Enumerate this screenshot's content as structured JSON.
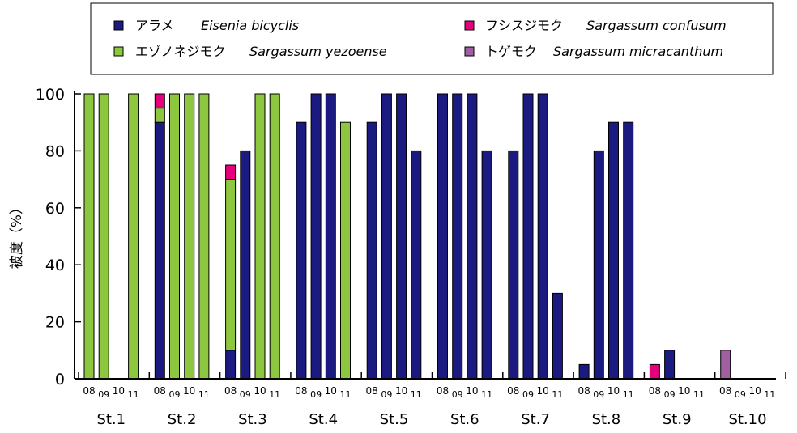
{
  "chart_data": {
    "type": "bar",
    "stacked": true,
    "ylabel": "被度（%）",
    "ylim": [
      0,
      100
    ],
    "yticks": [
      0,
      20,
      40,
      60,
      80,
      100
    ],
    "grid": false,
    "legend_position": "top",
    "years": [
      "08",
      "09",
      "10",
      "11"
    ],
    "stations": [
      "St.1",
      "St.2",
      "St.3",
      "St.4",
      "St.5",
      "St.6",
      "St.7",
      "St.8",
      "St.9",
      "St.10"
    ],
    "series": [
      {
        "name_ja": "アラメ",
        "name_sci": "Eisenia bicyclis",
        "color": "#1a1a80",
        "values": [
          [
            0,
            0,
            0,
            0
          ],
          [
            90,
            0,
            0,
            0
          ],
          [
            10,
            80,
            0,
            0
          ],
          [
            90,
            100,
            100,
            0
          ],
          [
            90,
            100,
            100,
            80
          ],
          [
            100,
            100,
            100,
            80
          ],
          [
            80,
            100,
            100,
            30
          ],
          [
            5,
            80,
            90,
            90
          ],
          [
            0,
            10,
            0,
            0
          ],
          [
            0,
            0,
            0,
            0
          ]
        ]
      },
      {
        "name_ja": "エゾノネジモク",
        "name_sci": "Sargassum yezoense",
        "color": "#8dc63f",
        "values": [
          [
            100,
            100,
            0,
            100
          ],
          [
            5,
            100,
            100,
            100
          ],
          [
            60,
            0,
            100,
            100
          ],
          [
            0,
            0,
            0,
            90
          ],
          [
            0,
            0,
            0,
            0
          ],
          [
            0,
            0,
            0,
            0
          ],
          [
            0,
            0,
            0,
            0
          ],
          [
            0,
            0,
            0,
            0
          ],
          [
            0,
            0,
            0,
            0
          ],
          [
            0,
            0,
            0,
            0
          ]
        ]
      },
      {
        "name_ja": "フシスジモク",
        "name_sci": "Sargassum confusum",
        "color": "#e6007e",
        "values": [
          [
            0,
            0,
            0,
            0
          ],
          [
            5,
            0,
            0,
            0
          ],
          [
            5,
            0,
            0,
            0
          ],
          [
            0,
            0,
            0,
            0
          ],
          [
            0,
            0,
            0,
            0
          ],
          [
            0,
            0,
            0,
            0
          ],
          [
            0,
            0,
            0,
            0
          ],
          [
            0,
            0,
            0,
            0
          ],
          [
            5,
            0,
            0,
            0
          ],
          [
            0,
            0,
            0,
            0
          ]
        ]
      },
      {
        "name_ja": "トゲモク",
        "name_sci": "Sargassum micracanthum",
        "color": "#a05fa0",
        "values": [
          [
            0,
            0,
            0,
            0
          ],
          [
            0,
            0,
            0,
            0
          ],
          [
            0,
            0,
            0,
            0
          ],
          [
            0,
            0,
            0,
            0
          ],
          [
            0,
            0,
            0,
            0
          ],
          [
            0,
            0,
            0,
            0
          ],
          [
            0,
            0,
            0,
            0
          ],
          [
            0,
            0,
            0,
            0
          ],
          [
            0,
            0,
            0,
            0
          ],
          [
            10,
            0,
            0,
            0
          ]
        ]
      }
    ]
  }
}
